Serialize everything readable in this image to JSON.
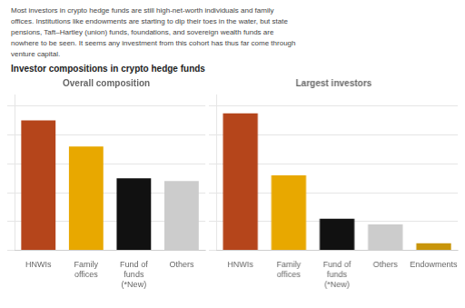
{
  "title": "Investor compositions in crypto hedge funds",
  "annotations": [
    "Most investors in crypto hedge funds are still high-net-worth individuals and family\noffices. Institutions like endowments are starting to dip their toes in the water, but state\npensions, Taft–Hartley (union) funds, foundations, and sovereign wealth funds are\nnowhere to be seen. It seems any investment from this cohort has thus far come through\nventure capital."
  ],
  "chart_data": [
    {
      "type": "bar",
      "title": "Overall composition",
      "categories": [
        "HNWIs",
        "Family\noffices",
        "Fund of\nfunds\n(*New)",
        "Others"
      ],
      "values": [
        90,
        72,
        50,
        48
      ],
      "colors": [
        "#b5451b",
        "#e8a800",
        "#111111",
        "#cccccc"
      ],
      "ylim": [
        0,
        108
      ],
      "yticks": [
        0,
        20,
        40,
        60,
        80,
        100
      ],
      "grid": true,
      "tick_labels": "x"
    },
    {
      "type": "bar",
      "title": "Largest investors",
      "categories": [
        "HNWIs",
        "Family\noffices",
        "Fund of\nfunds\n(*New)",
        "Others",
        "Endowments"
      ],
      "values": [
        95,
        52,
        22,
        18,
        5
      ],
      "colors": [
        "#b5451b",
        "#e8a800",
        "#111111",
        "#cccccc",
        "#c8950a"
      ],
      "ylim": [
        0,
        108
      ],
      "yticks": [
        0,
        20,
        40,
        60,
        80,
        100
      ],
      "grid": true,
      "tick_labels": "x"
    }
  ]
}
